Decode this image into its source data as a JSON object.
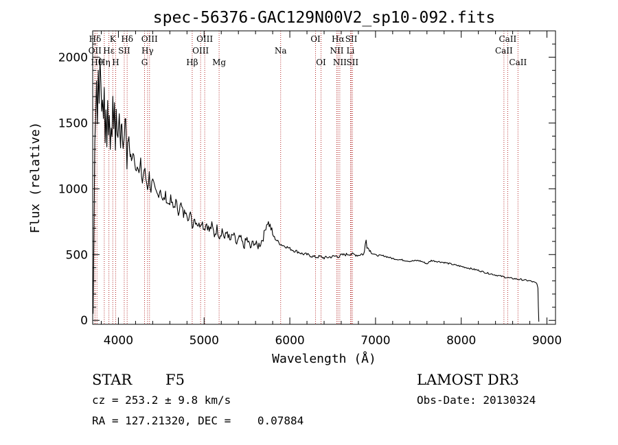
{
  "chart_data": {
    "type": "line",
    "title": "spec-56376-GAC129N00V2_sp10-092.fits",
    "xlabel": "Wavelength (Å)",
    "ylabel": "Flux (relative)",
    "xlim": [
      3700,
      9100
    ],
    "ylim": [
      -30,
      2200
    ],
    "x_ticks": [
      4000,
      5000,
      6000,
      7000,
      8000,
      9000
    ],
    "y_ticks": [
      0,
      500,
      1000,
      1500,
      2000
    ],
    "x_tick_labels": [
      "4000",
      "5000",
      "6000",
      "7000",
      "8000",
      "9000"
    ],
    "y_tick_labels": [
      "0",
      "500",
      "1000",
      "1500",
      "2000"
    ],
    "series": [
      {
        "name": "flux",
        "x": [
          3705,
          3715,
          3725,
          3735,
          3745,
          3755,
          3765,
          3775,
          3785,
          3795,
          3805,
          3815,
          3825,
          3835,
          3845,
          3855,
          3865,
          3875,
          3885,
          3895,
          3905,
          3915,
          3925,
          3935,
          3945,
          3955,
          3965,
          3975,
          3985,
          3995,
          4010,
          4025,
          4040,
          4055,
          4070,
          4085,
          4100,
          4115,
          4130,
          4145,
          4160,
          4180,
          4200,
          4220,
          4240,
          4260,
          4280,
          4300,
          4320,
          4340,
          4360,
          4380,
          4400,
          4430,
          4460,
          4490,
          4520,
          4550,
          4580,
          4610,
          4640,
          4670,
          4700,
          4730,
          4760,
          4790,
          4820,
          4850,
          4861,
          4880,
          4910,
          4940,
          4970,
          5000,
          5030,
          5060,
          5090,
          5120,
          5150,
          5180,
          5210,
          5240,
          5270,
          5300,
          5340,
          5380,
          5420,
          5460,
          5500,
          5540,
          5580,
          5620,
          5660,
          5700,
          5720,
          5740,
          5760,
          5780,
          5800,
          5830,
          5860,
          5890,
          5920,
          5960,
          6000,
          6050,
          6100,
          6150,
          6200,
          6250,
          6300,
          6350,
          6400,
          6450,
          6500,
          6550,
          6563,
          6600,
          6650,
          6700,
          6750,
          6800,
          6840,
          6860,
          6870,
          6880,
          6890,
          6900,
          6950,
          7000,
          7100,
          7200,
          7300,
          7400,
          7500,
          7550,
          7600,
          7650,
          7700,
          7800,
          7900,
          8000,
          8100,
          8200,
          8300,
          8400,
          8500,
          8600,
          8700,
          8800,
          8850,
          8880,
          8895,
          8900,
          8905
        ],
        "y": [
          50,
          700,
          1350,
          1600,
          1850,
          1500,
          1900,
          1700,
          1950,
          1800,
          1600,
          1700,
          1500,
          1750,
          1400,
          1600,
          1350,
          1650,
          1450,
          1550,
          1300,
          1500,
          1450,
          1650,
          1400,
          1700,
          1300,
          1550,
          1450,
          1400,
          1550,
          1350,
          1500,
          1300,
          1450,
          1550,
          1200,
          1400,
          1300,
          1250,
          1200,
          1300,
          1150,
          1220,
          1100,
          1180,
          1050,
          1150,
          1080,
          1020,
          1100,
          1000,
          1050,
          980,
          950,
          1000,
          900,
          950,
          880,
          920,
          850,
          900,
          830,
          880,
          800,
          850,
          760,
          820,
          700,
          780,
          750,
          720,
          760,
          700,
          740,
          680,
          720,
          650,
          700,
          640,
          690,
          620,
          680,
          600,
          650,
          580,
          630,
          560,
          620,
          550,
          600,
          560,
          590,
          650,
          720,
          750,
          730,
          700,
          650,
          620,
          600,
          580,
          570,
          560,
          545,
          530,
          520,
          505,
          500,
          490,
          480,
          485,
          475,
          480,
          485,
          490,
          485,
          495,
          500,
          505,
          500,
          495,
          505,
          500,
          520,
          580,
          620,
          560,
          520,
          495,
          490,
          470,
          460,
          450,
          455,
          445,
          430,
          455,
          450,
          440,
          425,
          410,
          395,
          380,
          360,
          345,
          330,
          318,
          310,
          300,
          290,
          280,
          250,
          100,
          -10
        ]
      }
    ],
    "line_markers": [
      {
        "label": "Hδ",
        "x": 3728,
        "row": 0
      },
      {
        "label": "OII",
        "x": 3726,
        "row": 1
      },
      {
        "label": "Hθ",
        "x": 3750,
        "row": 2
      },
      {
        "label": "Hη",
        "x": 3835,
        "row": 2
      },
      {
        "label": "K",
        "x": 3934,
        "row": 0
      },
      {
        "label": "Hε",
        "x": 3889,
        "row": 1
      },
      {
        "label": "SII",
        "x": 4068,
        "row": 1
      },
      {
        "label": "H",
        "x": 3968,
        "row": 2
      },
      {
        "label": "Hδ",
        "x": 4102,
        "row": 0
      },
      {
        "label": "OIII",
        "x": 4363,
        "row": 0
      },
      {
        "label": "Hγ",
        "x": 4340,
        "row": 1
      },
      {
        "label": "G",
        "x": 4305,
        "row": 2
      },
      {
        "label": "OIII",
        "x": 5007,
        "row": 0
      },
      {
        "label": "OIII",
        "x": 4959,
        "row": 1
      },
      {
        "label": "Hβ",
        "x": 4861,
        "row": 2
      },
      {
        "label": "Mg",
        "x": 5175,
        "row": 2
      },
      {
        "label": "Na",
        "x": 5893,
        "row": 1
      },
      {
        "label": "OI",
        "x": 6300,
        "row": 0
      },
      {
        "label": "OI",
        "x": 6364,
        "row": 2
      },
      {
        "label": "Hα",
        "x": 6563,
        "row": 0
      },
      {
        "label": "SII",
        "x": 6717,
        "row": 0
      },
      {
        "label": "NII",
        "x": 6548,
        "row": 1
      },
      {
        "label": "Li",
        "x": 6708,
        "row": 1
      },
      {
        "label": "NII",
        "x": 6583,
        "row": 2
      },
      {
        "label": "SII",
        "x": 6731,
        "row": 2
      },
      {
        "label": "CaII",
        "x": 8542,
        "row": 0
      },
      {
        "label": "CaII",
        "x": 8498,
        "row": 1
      },
      {
        "label": "CaII",
        "x": 8662,
        "row": 2
      }
    ]
  },
  "info": {
    "class_label": "STAR",
    "subclass": "F5",
    "survey": "LAMOST DR3",
    "redshift": "cz = 253.2 ± 9.8 km/s",
    "obs_date": "Obs-Date: 20130324",
    "coords": "RA = 127.21320, DEC =    0.07884"
  }
}
